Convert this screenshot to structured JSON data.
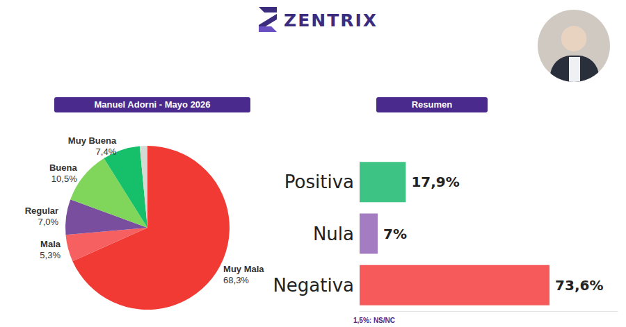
{
  "header": {
    "brand": "ZENTRIX"
  },
  "chart_data": [
    {
      "type": "pie",
      "title": "Manuel Adorni - Mayo 2026",
      "categories": [
        "Muy Mala",
        "Mala",
        "Regular",
        "Buena",
        "Muy Buena",
        null
      ],
      "values": [
        68.3,
        5.3,
        7.0,
        10.5,
        7.4,
        1.5
      ],
      "value_labels": [
        "68,3%",
        "5,3%",
        "7,0%",
        "10,5%",
        "7,4%",
        null
      ],
      "colors": [
        "#f23a35",
        "#f76060",
        "#7a4e9e",
        "#7fd65a",
        "#16c06a",
        "#d3dcd4"
      ],
      "data_labels": true
    },
    {
      "type": "bar",
      "title": "Resumen",
      "orientation": "horizontal",
      "categories": [
        "Positiva",
        "Nula",
        "Negativa"
      ],
      "values": [
        17.9,
        7,
        73.6
      ],
      "value_labels": [
        "17,9%",
        "7%",
        "73,6%"
      ],
      "colors": [
        "#3dc484",
        "#a47cc2",
        "#f65a5a"
      ],
      "xlim": [
        0,
        100
      ],
      "tick_labels": "y",
      "grid": false,
      "data_labels": true,
      "annotations": [
        "1,5%: NS/NC"
      ]
    }
  ]
}
